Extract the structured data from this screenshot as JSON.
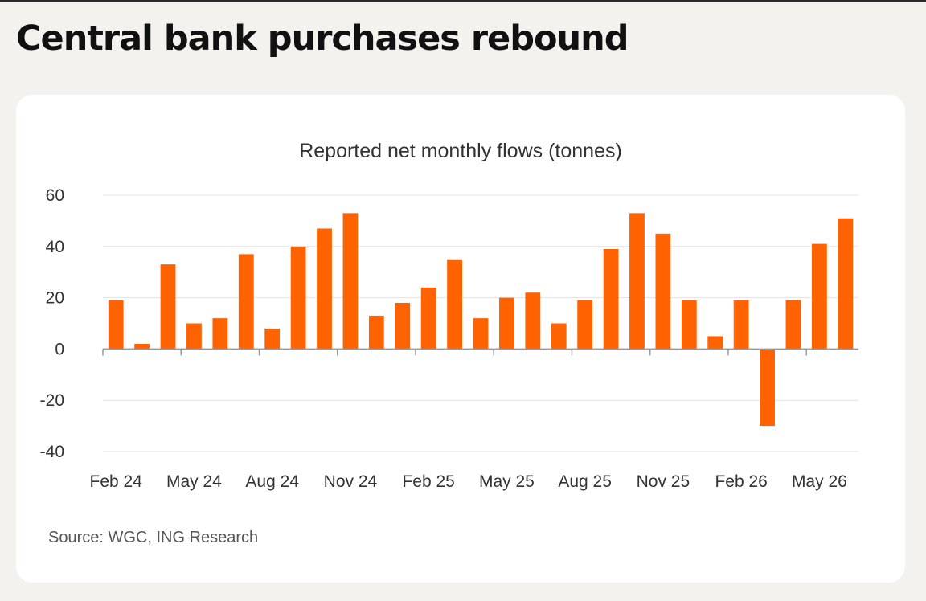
{
  "page": {
    "headline": "Central bank purchases rebound"
  },
  "colors": {
    "bar": "#ff6200",
    "grid": "#e3e3e3",
    "axis": "#999999",
    "background": "#f4f2ef",
    "card": "#ffffff"
  },
  "chart_data": {
    "type": "bar",
    "title": "Reported net monthly flows (tonnes)",
    "xlabel": "",
    "ylabel": "",
    "ylim": [
      -40,
      60
    ],
    "yticks": [
      60,
      40,
      20,
      0,
      -20,
      -40
    ],
    "grid": true,
    "categories": [
      "Feb 24",
      "Mar 24",
      "Apr 24",
      "May 24",
      "Jun 24",
      "Jul 24",
      "Aug 24",
      "Sep 24",
      "Oct 24",
      "Nov 24",
      "Dec 24",
      "Jan 25",
      "Feb 25",
      "Mar 25",
      "Apr 25",
      "May 25",
      "Jun 25",
      "Jul 25",
      "Aug 25",
      "Sep 25",
      "Oct 25",
      "Nov 25",
      "Dec 25",
      "Jan 26",
      "Feb 26",
      "Mar 26",
      "Apr 26",
      "May 26",
      "Jun 26"
    ],
    "x_tick_labels": [
      "Feb 24",
      "May 24",
      "Aug 24",
      "Nov 24",
      "Feb 25",
      "May 25",
      "Aug 25",
      "Nov 25",
      "Feb 26",
      "May 26"
    ],
    "values": [
      19,
      2,
      33,
      10,
      12,
      37,
      8,
      40,
      47,
      53,
      13,
      18,
      24,
      35,
      12,
      20,
      22,
      10,
      19,
      39,
      53,
      45,
      19,
      5,
      19,
      -30,
      19,
      41,
      51
    ]
  },
  "source": "Source: WGC, ING Research"
}
